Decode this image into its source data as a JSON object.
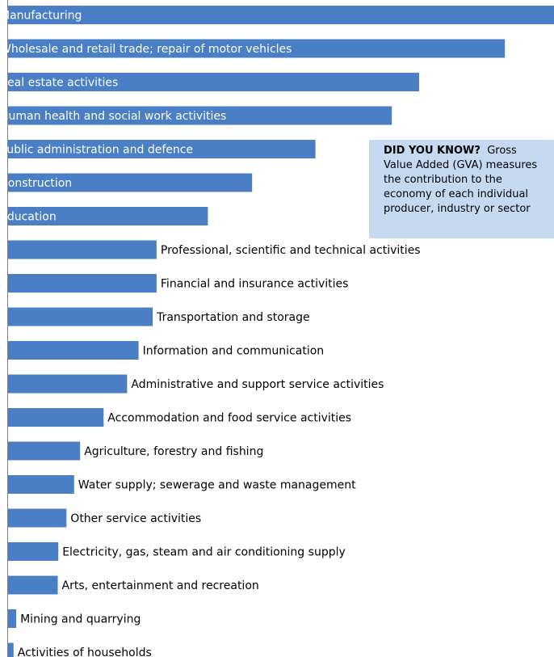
{
  "colors": {
    "bar": "#4a7fc5",
    "axis": "#7f7f7f",
    "inside_label": "#ffffff",
    "outside_label": "#000000",
    "callout_bg": "#c5d9f1"
  },
  "callout": {
    "heading": "DID YOU KNOW?",
    "lines": [
      "Gross",
      "Value Added (GVA) measures",
      "the contribution to the",
      "economy of each individual",
      "producer, industry or sector"
    ]
  },
  "chart_data": {
    "type": "bar",
    "orientation": "horizontal",
    "categories": [
      "Manufacturing",
      "Wholesale and retail trade; repair of motor vehicles",
      "Real estate activities",
      "Human health and social work activities",
      "Public administration and defence",
      "Construction",
      "Education",
      "Professional, scientific and technical activities",
      "Financial and insurance activities",
      "Transportation and storage",
      "Information and communication",
      "Administrative and support service activities",
      "Accommodation and food service activities",
      "Agriculture, forestry and fishing",
      "Water supply; sewerage and waste management",
      "Other service activities",
      "Electricity, gas, steam and air conditioning supply",
      "Arts, entertainment and recreation",
      "Mining and quarrying",
      "Activities of households"
    ],
    "values": [
      100,
      91,
      75.3,
      70.3,
      56.3,
      44.7,
      36.6,
      27.2,
      27.2,
      26.5,
      23.9,
      21.8,
      17.5,
      13.2,
      12.1,
      10.7,
      9.2,
      9.1,
      1.5,
      1.0
    ],
    "label_inside": [
      true,
      true,
      true,
      true,
      true,
      true,
      true,
      false,
      false,
      false,
      false,
      false,
      false,
      false,
      false,
      false,
      false,
      false,
      false,
      false
    ],
    "xlim": [
      0,
      100
    ],
    "title": "",
    "xlabel": "",
    "ylabel": "",
    "grid": false,
    "legend": "none"
  }
}
